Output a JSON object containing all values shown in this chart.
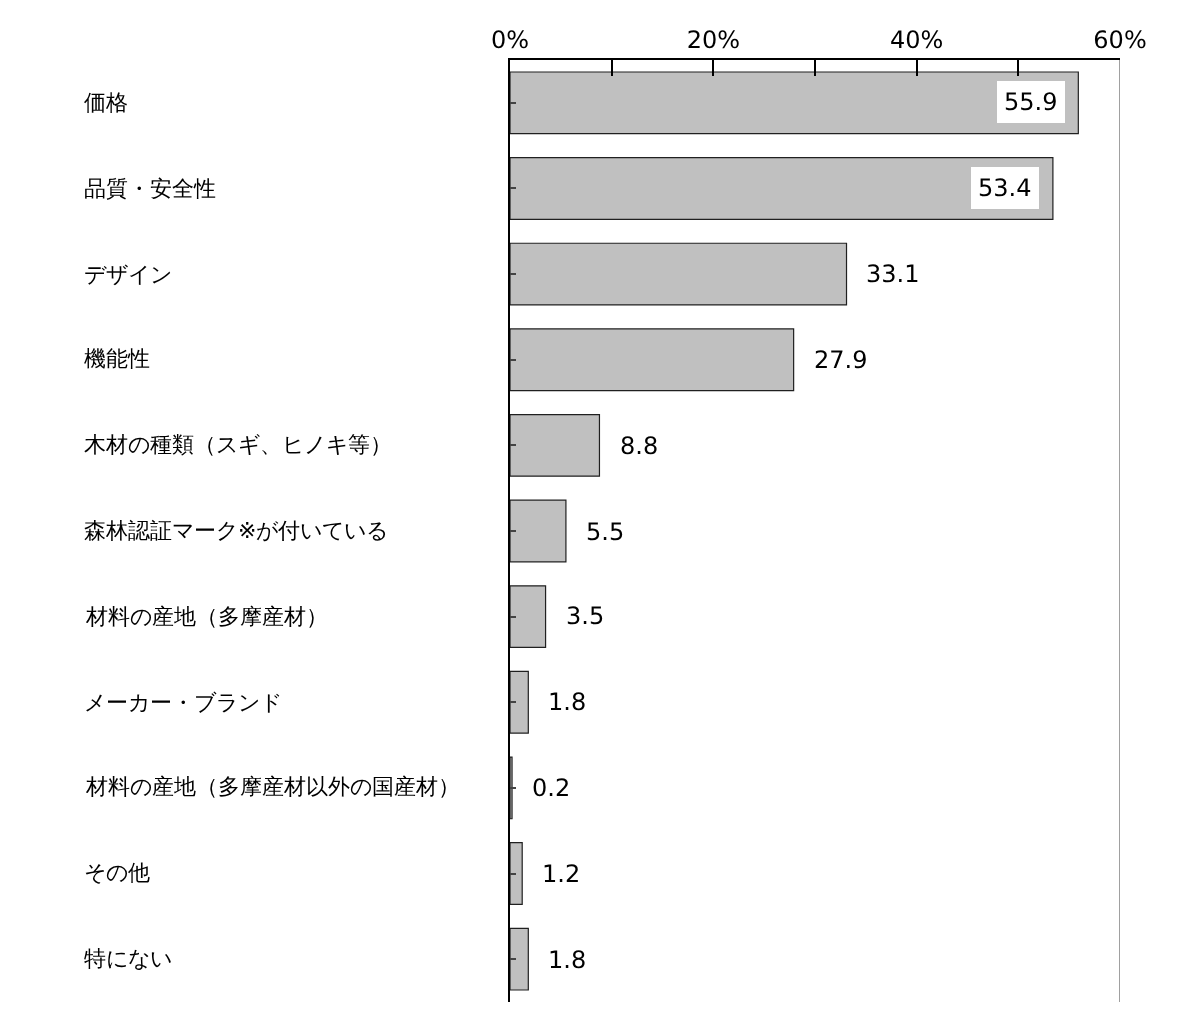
{
  "chart_data": {
    "type": "bar",
    "orientation": "horizontal",
    "categories": [
      "価格",
      "品質・安全性",
      "デザイン",
      "機能性",
      "木材の種類（スギ、ヒノキ等）",
      "森林認証マーク※が付いている",
      "材料の産地（多摩産材）",
      "メーカー・ブランド",
      "材料の産地（多摩産材以外の国産材）",
      "その他",
      "特にない"
    ],
    "values": [
      55.9,
      53.4,
      33.1,
      27.9,
      8.8,
      5.5,
      3.5,
      1.8,
      0.2,
      1.2,
      1.8
    ],
    "color": "#c0c0c0",
    "xlim": [
      0,
      60
    ],
    "xticks": [
      {
        "value": 0,
        "label": "0%"
      },
      {
        "value": 10,
        "label": null
      },
      {
        "value": 20,
        "label": "20%"
      },
      {
        "value": 30,
        "label": null
      },
      {
        "value": 40,
        "label": "40%"
      },
      {
        "value": 50,
        "label": null
      },
      {
        "value": 60,
        "label": "60%"
      }
    ],
    "data_labels": true,
    "legend": false
  }
}
